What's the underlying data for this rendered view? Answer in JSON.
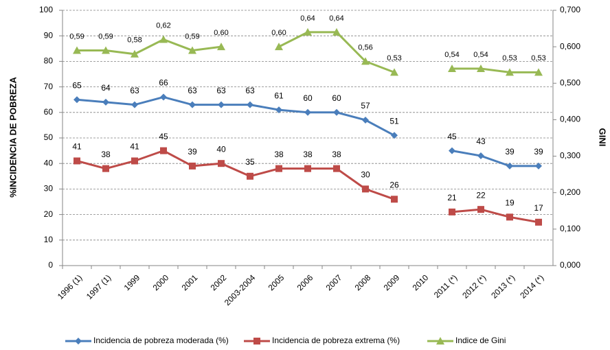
{
  "chart_data": {
    "type": "line",
    "y_label": "%INCIDENCIA DE POBREZA",
    "y2_label": "GINI",
    "categories": [
      "1996 (1)",
      "1997 (1)",
      "1999",
      "2000",
      "2001",
      "2002",
      "2003-2004",
      "2005",
      "2006",
      "2007",
      "2008",
      "2009",
      "2010",
      "2011 (*)",
      "2012 (*)",
      "2013 (*)",
      "2014 (*)"
    ],
    "series": [
      {
        "name": "Incidencia de pobreza moderada (%)",
        "color": "#4a7ebb",
        "marker": "diamond",
        "values": [
          65,
          64,
          63,
          66,
          63,
          63,
          63,
          61,
          60,
          60,
          57,
          51,
          null,
          45,
          43,
          39,
          39
        ]
      },
      {
        "name": "Incidencia de pobreza extrema (%)",
        "color": "#be4b48",
        "marker": "square",
        "values": [
          41,
          38,
          41,
          45,
          39,
          40,
          35,
          38,
          38,
          38,
          30,
          26,
          null,
          21,
          22,
          19,
          17
        ]
      },
      {
        "name": "Indice de Gini",
        "color": "#98b954",
        "marker": "triangle",
        "axis": "y2",
        "values": [
          0.59,
          0.59,
          0.58,
          0.62,
          0.59,
          0.6,
          null,
          0.6,
          0.64,
          0.64,
          0.56,
          0.53,
          null,
          0.54,
          0.54,
          0.53,
          0.53
        ],
        "value_labels": [
          "0,59",
          "0,59",
          "0,58",
          "0,62",
          "0,59",
          "0,60",
          null,
          "0,60",
          "0,64",
          "0,64",
          "0,56",
          "0,53",
          null,
          "0,54",
          "0,54",
          "0,53",
          "0,53"
        ]
      }
    ],
    "ylim": [
      0,
      100
    ],
    "yticks": [
      0,
      10,
      20,
      30,
      40,
      50,
      60,
      70,
      80,
      90,
      100
    ],
    "y2lim": [
      0,
      0.7
    ],
    "y2ticks": [
      {
        "value": 0,
        "label": "0,000"
      },
      {
        "value": 0.1,
        "label": "0,100"
      },
      {
        "value": 0.2,
        "label": "0,200"
      },
      {
        "value": 0.3,
        "label": "0,300"
      },
      {
        "value": 0.4,
        "label": "0,400"
      },
      {
        "value": 0.5,
        "label": "0,500"
      },
      {
        "value": 0.6,
        "label": "0,600"
      },
      {
        "value": 0.7,
        "label": "0,700"
      }
    ],
    "grid": true,
    "legend": "bottom"
  }
}
